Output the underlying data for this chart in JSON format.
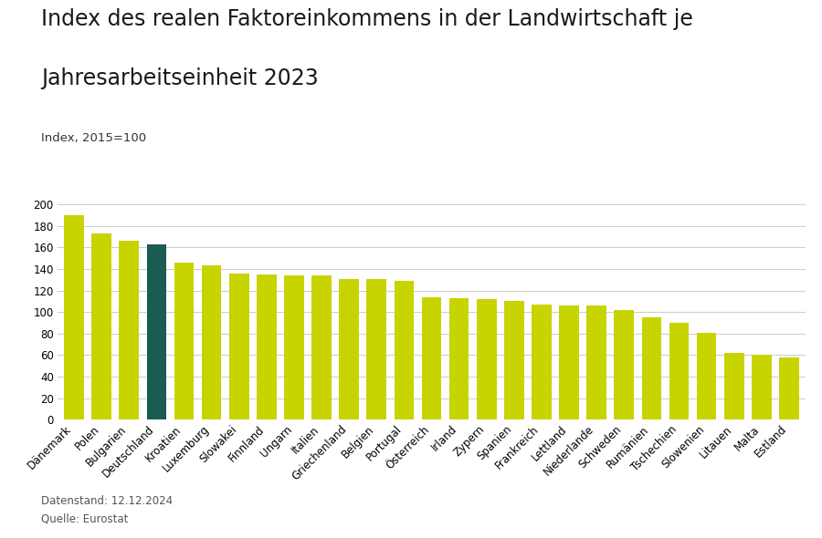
{
  "title_line1": "Index des realen Faktoreinkommens in der Landwirtschaft je",
  "title_line2": "Jahresarbeitseinheit 2023",
  "subtitle": "Index, 2015=100",
  "footnote1": "Datenstand: 12.12.2024",
  "footnote2": "Quelle: Eurostat",
  "categories": [
    "Dänemark",
    "Polen",
    "Bulgarien",
    "Deutschland",
    "Kroatien",
    "Luxemburg",
    "Slowakei",
    "Finnland",
    "Ungarn",
    "Italien",
    "Griechenland",
    "Belgien",
    "Portugal",
    "Österreich",
    "Irland",
    "Zypern",
    "Spanien",
    "Frankreich",
    "Lettland",
    "Niederlande",
    "Schweden",
    "Rumänien",
    "Tschechien",
    "Slowenien",
    "Litauen",
    "Malta",
    "Estland"
  ],
  "values": [
    190,
    173,
    166,
    163,
    146,
    143,
    136,
    135,
    134,
    134,
    131,
    131,
    129,
    114,
    113,
    112,
    110,
    107,
    106,
    106,
    102,
    95,
    90,
    81,
    62,
    60,
    58
  ],
  "bar_color_default": "#c8d400",
  "bar_color_highlight": "#1a5c52",
  "highlight_index": 3,
  "ylim": [
    0,
    200
  ],
  "yticks": [
    0,
    20,
    40,
    60,
    80,
    100,
    120,
    140,
    160,
    180,
    200
  ],
  "background_color": "#ffffff",
  "grid_color": "#cccccc",
  "title_fontsize": 17,
  "subtitle_fontsize": 9.5,
  "footnote_fontsize": 8.5,
  "tick_fontsize": 8.5
}
